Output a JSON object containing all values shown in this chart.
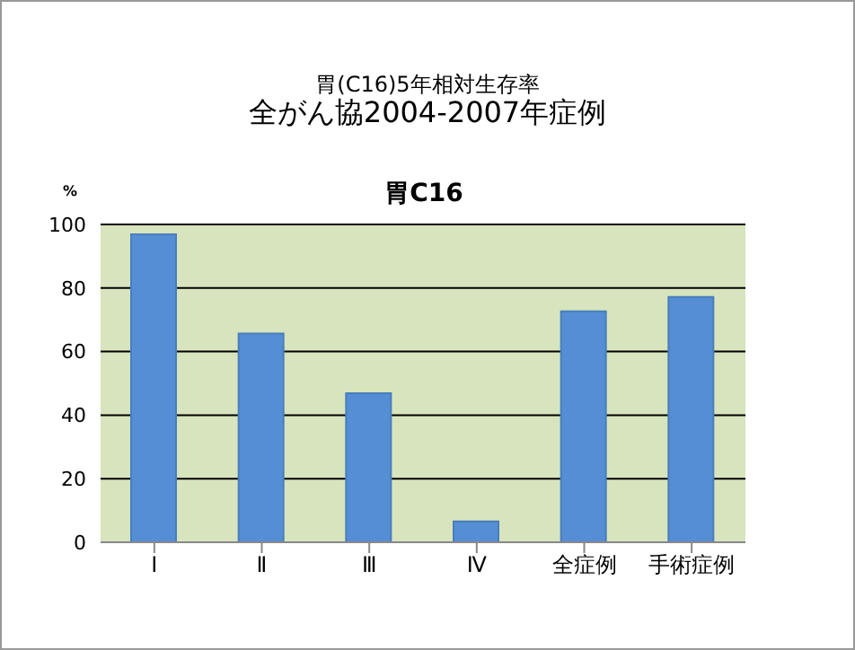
{
  "chart_data": {
    "type": "bar",
    "title": "胃(C16)5年相対生存率",
    "subtitle": "全がん協2004-2007年症例",
    "annotations": [
      "胃C16"
    ],
    "ylabel": "%",
    "categories": [
      "Ⅰ",
      "Ⅱ",
      "Ⅲ",
      "Ⅳ",
      "全症例",
      "手術症例"
    ],
    "values": [
      96.9,
      65.7,
      46.9,
      6.6,
      72.7,
      77.2
    ],
    "color": "#558ed5",
    "ylim": [
      0,
      100
    ],
    "yticks": [
      0,
      20,
      40,
      60,
      80,
      100
    ],
    "grid": "y",
    "legend": false
  }
}
